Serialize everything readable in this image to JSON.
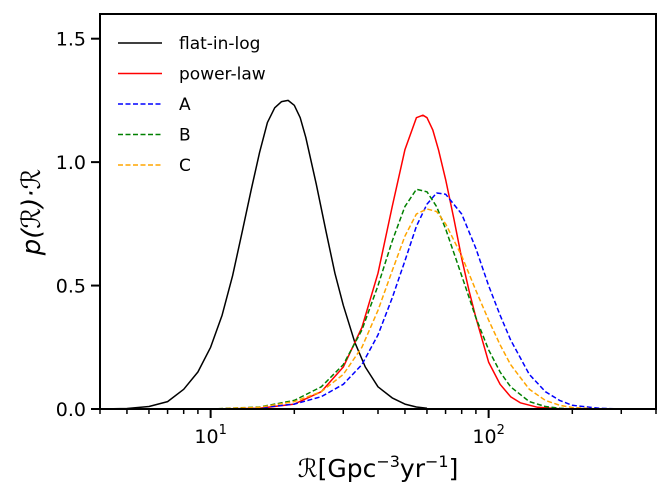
{
  "chart_data": {
    "type": "line",
    "xscale": "log",
    "xlim": [
      4,
      400
    ],
    "ylim": [
      0,
      1.6
    ],
    "xlabel_symbol": "ℛ",
    "xlabel_units": "[Gpc",
    "xlabel_exp1": "−3",
    "xlabel_mid": "yr",
    "xlabel_exp2": "−1",
    "xlabel_close": "]",
    "ylabel": "p(ℛ)·ℛ",
    "x_major_ticks": [
      {
        "value": 10,
        "label_base": "10",
        "label_exp": "1"
      },
      {
        "value": 100,
        "label_base": "10",
        "label_exp": "2"
      }
    ],
    "y_ticks": [
      {
        "value": 0.0,
        "label": "0.0"
      },
      {
        "value": 0.5,
        "label": "0.5"
      },
      {
        "value": 1.0,
        "label": "1.0"
      },
      {
        "value": 1.5,
        "label": "1.5"
      }
    ],
    "grid": false,
    "legend_position": "top-left",
    "series": [
      {
        "name": "flat-in-log",
        "color": "#000000",
        "dash": "solid",
        "x": [
          4,
          5,
          6,
          7,
          8,
          9,
          10,
          11,
          12,
          13,
          14,
          15,
          16,
          17,
          18,
          19,
          20,
          21,
          22,
          24,
          26,
          28,
          30,
          33,
          36,
          40,
          45,
          50,
          55,
          60
        ],
        "y": [
          0,
          0.002,
          0.01,
          0.03,
          0.08,
          0.15,
          0.25,
          0.38,
          0.54,
          0.72,
          0.89,
          1.04,
          1.16,
          1.22,
          1.245,
          1.25,
          1.23,
          1.18,
          1.1,
          0.91,
          0.72,
          0.55,
          0.42,
          0.27,
          0.17,
          0.09,
          0.045,
          0.02,
          0.008,
          0.003
        ]
      },
      {
        "name": "power-law",
        "color": "#ff0000",
        "dash": "solid",
        "x": [
          10,
          15,
          20,
          25,
          30,
          35,
          40,
          45,
          50,
          55,
          58,
          60,
          63,
          66,
          70,
          75,
          80,
          85,
          90,
          100,
          110,
          120,
          130,
          150,
          180,
          200
        ],
        "y": [
          0,
          0.003,
          0.02,
          0.07,
          0.17,
          0.33,
          0.55,
          0.82,
          1.05,
          1.18,
          1.19,
          1.18,
          1.13,
          1.05,
          0.93,
          0.77,
          0.61,
          0.48,
          0.37,
          0.19,
          0.1,
          0.05,
          0.025,
          0.007,
          0.001,
          0
        ]
      },
      {
        "name": "A",
        "color": "#0000ff",
        "dash": "dashed",
        "x": [
          10,
          15,
          20,
          25,
          30,
          35,
          40,
          45,
          50,
          55,
          60,
          65,
          70,
          80,
          90,
          100,
          110,
          120,
          140,
          160,
          180,
          200,
          250,
          300
        ],
        "y": [
          0,
          0.005,
          0.02,
          0.05,
          0.1,
          0.18,
          0.3,
          0.45,
          0.6,
          0.74,
          0.83,
          0.875,
          0.87,
          0.79,
          0.65,
          0.5,
          0.38,
          0.28,
          0.14,
          0.07,
          0.035,
          0.015,
          0.003,
          0
        ]
      },
      {
        "name": "B",
        "color": "#008000",
        "dash": "dashed",
        "x": [
          10,
          15,
          20,
          25,
          30,
          35,
          40,
          45,
          50,
          55,
          60,
          65,
          70,
          80,
          90,
          100,
          110,
          120,
          140,
          160,
          180,
          200
        ],
        "y": [
          0,
          0.008,
          0.035,
          0.09,
          0.18,
          0.32,
          0.5,
          0.68,
          0.82,
          0.89,
          0.88,
          0.82,
          0.73,
          0.54,
          0.37,
          0.24,
          0.15,
          0.09,
          0.03,
          0.01,
          0.003,
          0
        ]
      },
      {
        "name": "C",
        "color": "#ffa500",
        "dash": "dashed",
        "x": [
          10,
          15,
          20,
          25,
          30,
          35,
          40,
          45,
          50,
          55,
          60,
          65,
          70,
          80,
          90,
          100,
          110,
          120,
          140,
          160,
          180,
          200,
          250
        ],
        "y": [
          0,
          0.007,
          0.03,
          0.07,
          0.14,
          0.25,
          0.4,
          0.56,
          0.7,
          0.79,
          0.81,
          0.8,
          0.75,
          0.62,
          0.48,
          0.36,
          0.26,
          0.18,
          0.08,
          0.035,
          0.015,
          0.006,
          0
        ]
      }
    ]
  }
}
